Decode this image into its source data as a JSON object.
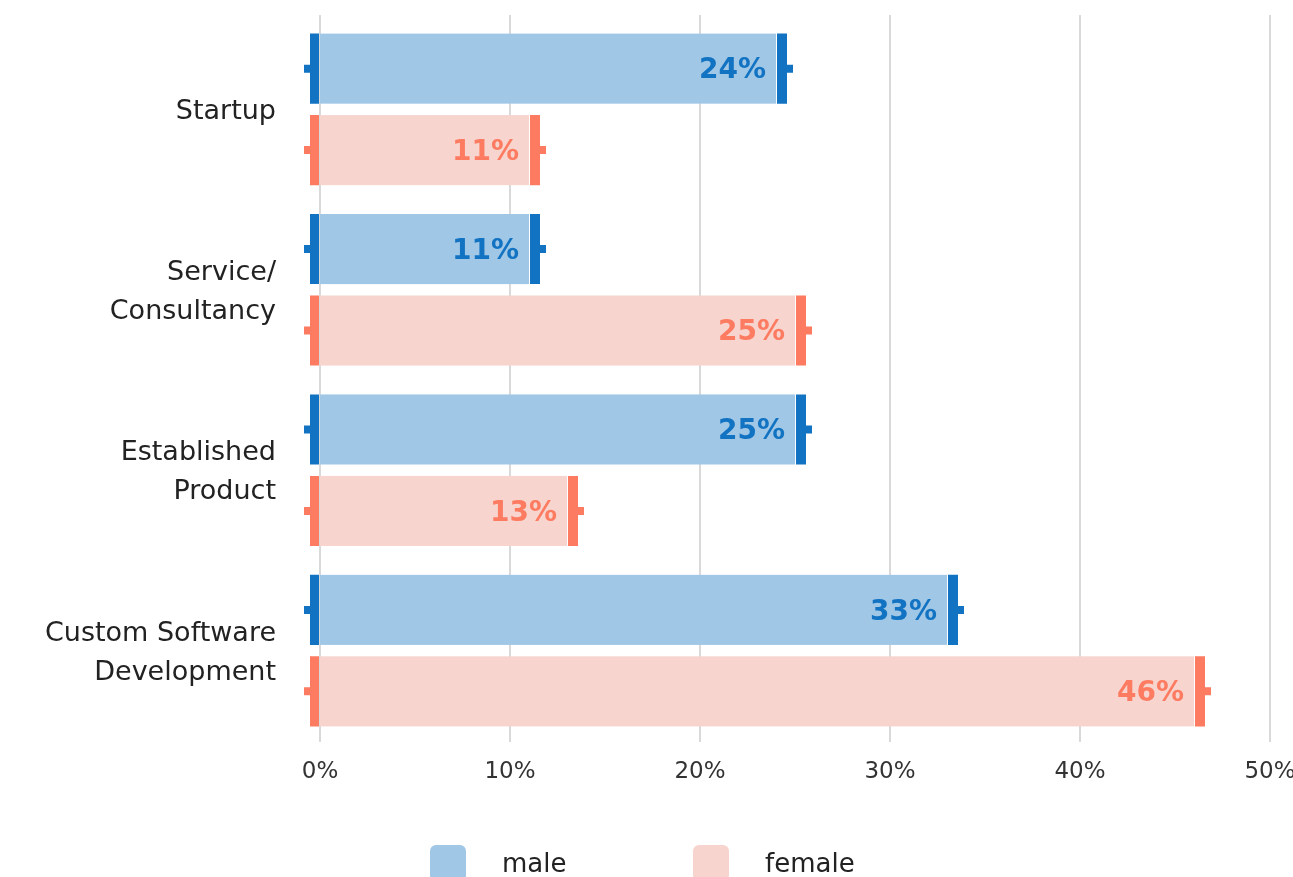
{
  "chart_data": {
    "type": "bar",
    "orientation": "horizontal",
    "categories": [
      "Startup",
      "Service/\nConsultancy",
      "Established\nProduct",
      "Custom Software\nDevelopment"
    ],
    "series": [
      {
        "name": "male",
        "color": "#a1c7e6",
        "values": [
          24,
          11,
          25,
          33
        ],
        "value_labels": [
          "24%",
          "11%",
          "25%",
          "33%"
        ]
      },
      {
        "name": "female",
        "color": "#f7d4cd",
        "values": [
          11,
          25,
          13,
          46
        ],
        "value_labels": [
          "11%",
          "25%",
          "13%",
          "46%"
        ]
      }
    ],
    "xlim": [
      0,
      50
    ],
    "xticks": [
      {
        "value": 0,
        "label": "0%"
      },
      {
        "value": 10,
        "label": "10%"
      },
      {
        "value": 20,
        "label": "20%"
      },
      {
        "value": 30,
        "label": "30%"
      },
      {
        "value": 40,
        "label": "40%"
      },
      {
        "value": 50,
        "label": "50%"
      }
    ],
    "grid": "x",
    "legend": "bottom"
  }
}
